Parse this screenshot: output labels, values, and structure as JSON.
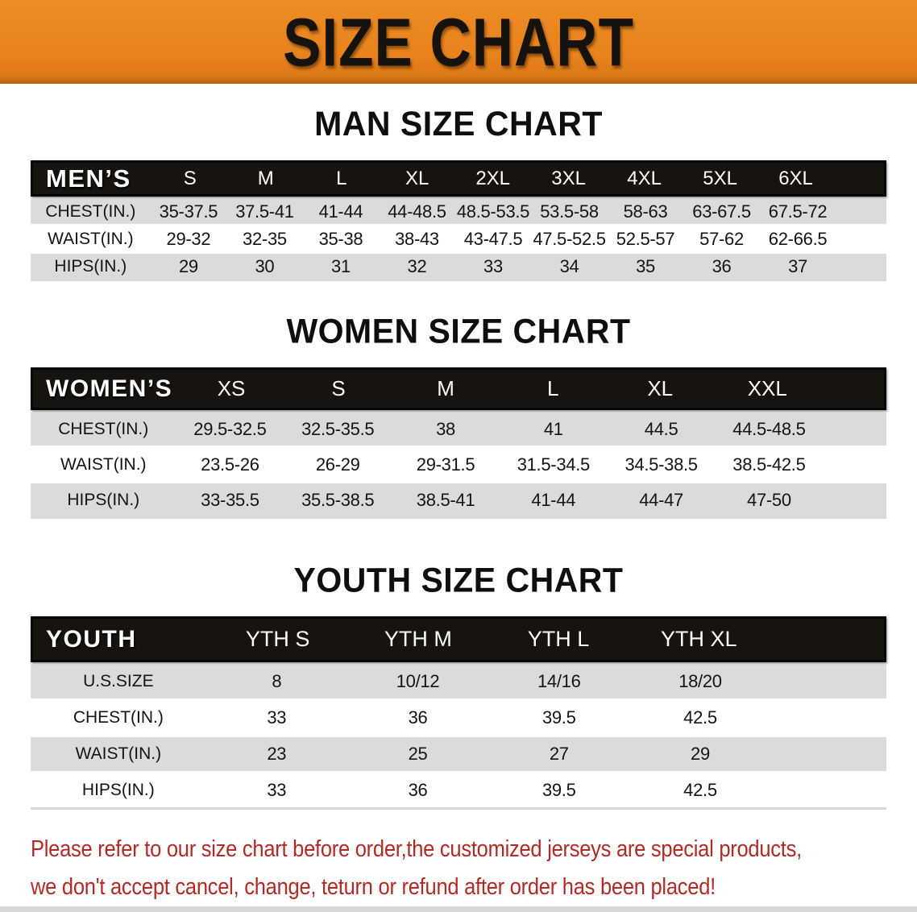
{
  "banner": {
    "title": "SIZE CHART",
    "bg_color": "#E8831D",
    "text_color": "#16130F"
  },
  "men": {
    "title": "MAN SIZE CHART",
    "header_label": "MEN’S",
    "sizes": [
      "S",
      "M",
      "L",
      "XL",
      "2XL",
      "3XL",
      "4XL",
      "5XL",
      "6XL"
    ],
    "rows": [
      {
        "label": "CHEST(IN.)",
        "values": [
          "35-37.5",
          "37.5-41",
          "41-44",
          "44-48.5",
          "48.5-53.5",
          "53.5-58",
          "58-63",
          "63-67.5",
          "67.5-72"
        ]
      },
      {
        "label": "WAIST(IN.)",
        "values": [
          "29-32",
          "32-35",
          "35-38",
          "38-43",
          "43-47.5",
          "47.5-52.5",
          "52.5-57",
          "57-62",
          "62-66.5"
        ]
      },
      {
        "label": "HIPS(IN.)",
        "values": [
          "29",
          "30",
          "31",
          "32",
          "33",
          "34",
          "35",
          "36",
          "37"
        ]
      }
    ]
  },
  "women": {
    "title": "WOMEN SIZE CHART",
    "header_label": "WOMEN’S",
    "sizes": [
      "XS",
      "S",
      "M",
      "L",
      "XL",
      "XXL"
    ],
    "rows": [
      {
        "label": "CHEST(IN.)",
        "values": [
          "29.5-32.5",
          "32.5-35.5",
          "38",
          "41",
          "44.5",
          "44.5-48.5"
        ]
      },
      {
        "label": "WAIST(IN.)",
        "values": [
          "23.5-26",
          "26-29",
          "29-31.5",
          "31.5-34.5",
          "34.5-38.5",
          "38.5-42.5"
        ]
      },
      {
        "label": "HIPS(IN.)",
        "values": [
          "33-35.5",
          "35.5-38.5",
          "38.5-41",
          "41-44",
          "44-47",
          "47-50"
        ]
      }
    ]
  },
  "youth": {
    "title": "YOUTH SIZE CHART",
    "header_label": "YOUTH",
    "sizes": [
      "YTH S",
      "YTH M",
      "YTH L",
      "YTH XL"
    ],
    "rows": [
      {
        "label": "U.S.SIZE",
        "values": [
          "8",
          "10/12",
          "14/16",
          "18/20"
        ]
      },
      {
        "label": "CHEST(IN.)",
        "values": [
          "33",
          "36",
          "39.5",
          "42.5"
        ]
      },
      {
        "label": "WAIST(IN.)",
        "values": [
          "23",
          "25",
          "27",
          "29"
        ]
      },
      {
        "label": "HIPS(IN.)",
        "values": [
          "33",
          "36",
          "39.5",
          "42.5"
        ]
      }
    ]
  },
  "disclaimer": {
    "line1": "Please refer to our size chart before order,the customized jerseys are special products,",
    "line2": "we don't accept cancel, change, teturn or refund after order has been placed!",
    "color": "#B02A26"
  },
  "style_colors": {
    "table_header_bg": "#17130F",
    "row_stripe_gray": "#DBDBDB"
  }
}
